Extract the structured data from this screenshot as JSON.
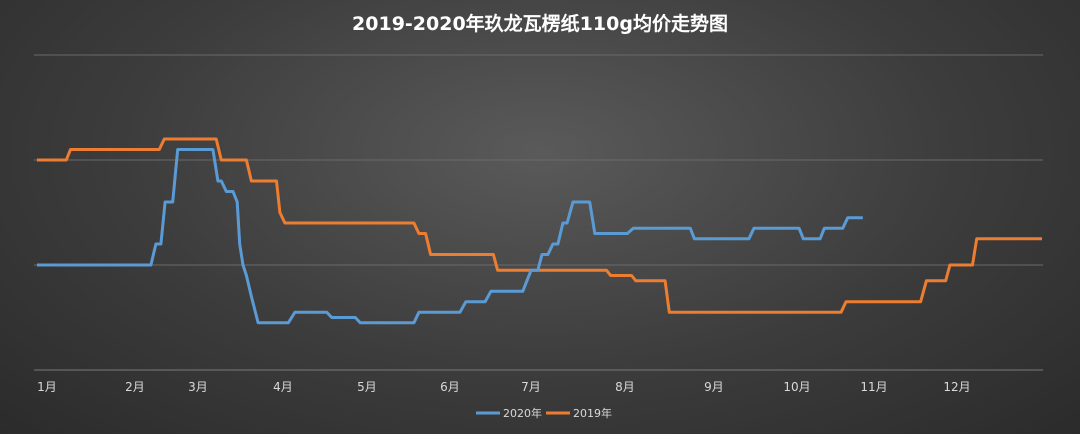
{
  "chart_data": {
    "type": "line",
    "title": "2019-2020年玖龙瓦楞纸110g均价走势图",
    "xlabel": "",
    "ylabel": "",
    "x_tick_labels": [
      "1月",
      "2月",
      "3月",
      "4月",
      "5月",
      "6月",
      "7月",
      "8月",
      "9月",
      "10月",
      "11月",
      "12月"
    ],
    "x_range": [
      0,
      12
    ],
    "ylim": [
      0,
      30
    ],
    "gridlines": [
      10,
      20,
      30
    ],
    "grid": true,
    "legend_position": "bottom",
    "series": [
      {
        "name": "2020年",
        "color": "#5b9bd5",
        "points": [
          [
            0,
            10
          ],
          [
            1.36,
            10
          ],
          [
            1.42,
            12
          ],
          [
            1.48,
            12
          ],
          [
            1.53,
            16
          ],
          [
            1.62,
            16
          ],
          [
            1.68,
            21
          ],
          [
            2.1,
            21
          ],
          [
            2.16,
            18
          ],
          [
            2.2,
            18
          ],
          [
            2.26,
            17
          ],
          [
            2.34,
            17
          ],
          [
            2.39,
            16
          ],
          [
            2.42,
            12
          ],
          [
            2.46,
            10
          ],
          [
            2.5,
            9
          ],
          [
            2.56,
            7
          ],
          [
            2.64,
            4.5
          ],
          [
            3.0,
            4.5
          ],
          [
            3.08,
            5.5
          ],
          [
            3.46,
            5.5
          ],
          [
            3.52,
            5.0
          ],
          [
            3.8,
            5.0
          ],
          [
            3.86,
            4.5
          ],
          [
            4.5,
            4.5
          ],
          [
            4.56,
            5.5
          ],
          [
            5.05,
            5.5
          ],
          [
            5.12,
            6.5
          ],
          [
            5.35,
            6.5
          ],
          [
            5.42,
            7.5
          ],
          [
            5.8,
            7.5
          ],
          [
            5.85,
            8.5
          ],
          [
            5.9,
            9.5
          ],
          [
            5.98,
            9.5
          ],
          [
            6.03,
            11
          ],
          [
            6.1,
            11
          ],
          [
            6.16,
            12
          ],
          [
            6.22,
            12
          ],
          [
            6.28,
            14
          ],
          [
            6.33,
            14
          ],
          [
            6.4,
            16
          ],
          [
            6.6,
            16
          ],
          [
            6.66,
            13
          ],
          [
            7.05,
            13
          ],
          [
            7.12,
            13.5
          ],
          [
            7.8,
            13.5
          ],
          [
            7.85,
            12.5
          ],
          [
            8.5,
            12.5
          ],
          [
            8.56,
            13.5
          ],
          [
            9.1,
            13.5
          ],
          [
            9.15,
            12.5
          ],
          [
            9.35,
            12.5
          ],
          [
            9.4,
            13.5
          ],
          [
            9.62,
            13.5
          ],
          [
            9.68,
            14.5
          ],
          [
            9.86,
            14.5
          ]
        ]
      },
      {
        "name": "2019年",
        "color": "#ed7d31",
        "points": [
          [
            0,
            20
          ],
          [
            0.35,
            20
          ],
          [
            0.4,
            21
          ],
          [
            1.46,
            21
          ],
          [
            1.52,
            22
          ],
          [
            2.14,
            22
          ],
          [
            2.2,
            20
          ],
          [
            2.5,
            20
          ],
          [
            2.56,
            18
          ],
          [
            2.86,
            18
          ],
          [
            2.9,
            15
          ],
          [
            2.96,
            14
          ],
          [
            4.5,
            14
          ],
          [
            4.56,
            13
          ],
          [
            4.64,
            13
          ],
          [
            4.7,
            11
          ],
          [
            5.45,
            11
          ],
          [
            5.5,
            9.5
          ],
          [
            6.8,
            9.5
          ],
          [
            6.85,
            9
          ],
          [
            7.1,
            9
          ],
          [
            7.15,
            8.5
          ],
          [
            7.5,
            8.5
          ],
          [
            7.55,
            5.5
          ],
          [
            9.6,
            5.5
          ],
          [
            9.66,
            6.5
          ],
          [
            10.55,
            6.5
          ],
          [
            10.62,
            8.5
          ],
          [
            10.85,
            8.5
          ],
          [
            10.9,
            10
          ],
          [
            11.17,
            10
          ],
          [
            11.22,
            12.5
          ],
          [
            12.0,
            12.5
          ]
        ]
      }
    ]
  }
}
